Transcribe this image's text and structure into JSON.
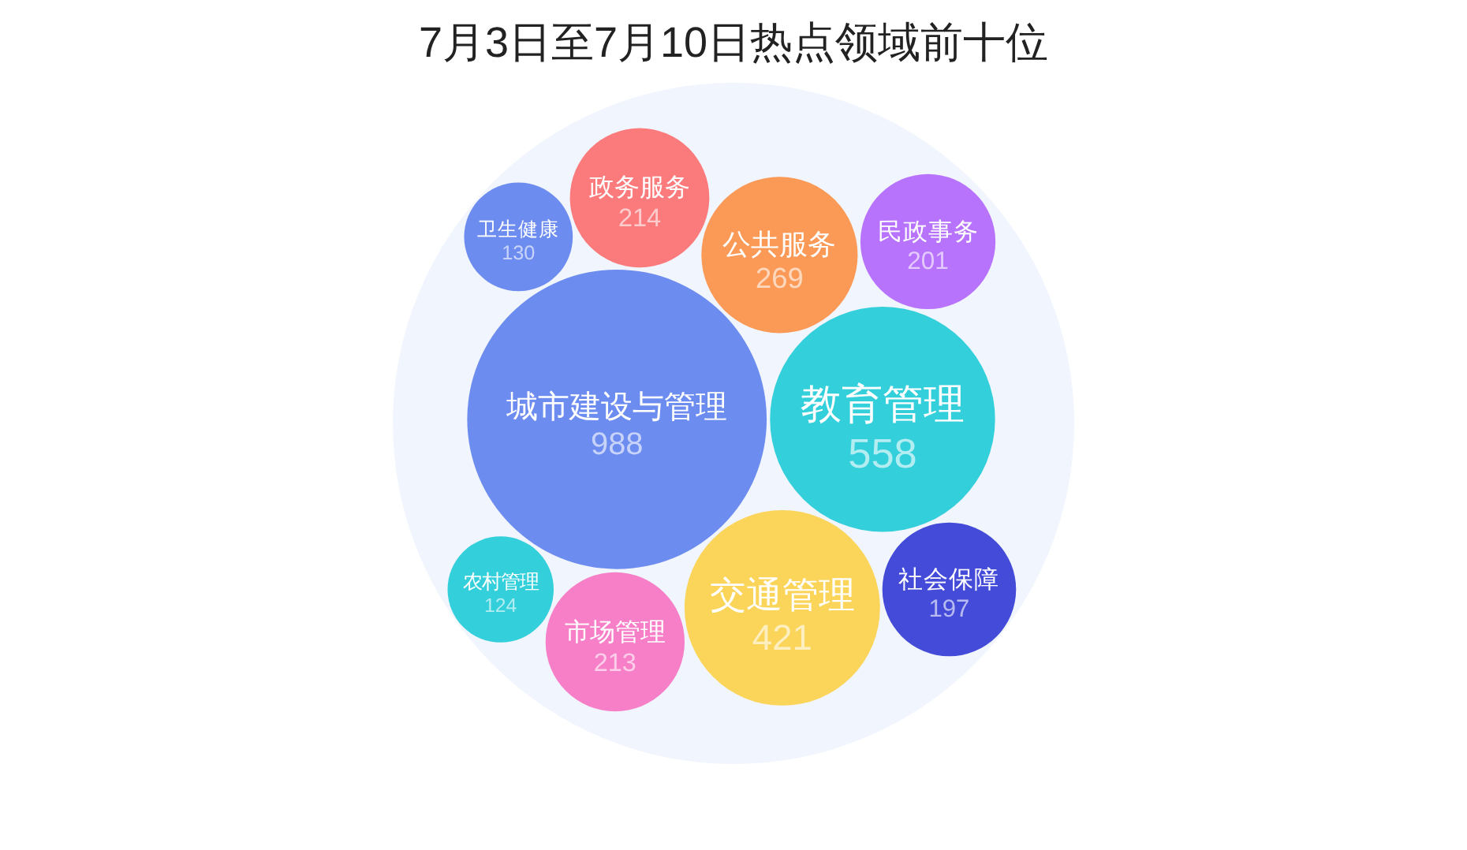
{
  "chart_data": {
    "type": "other",
    "title": "7月3日至7月10日热点领域前十位",
    "categories": [
      "城市建设与管理",
      "教育管理",
      "交通管理",
      "公共服务",
      "政务服务",
      "市场管理",
      "民政事务",
      "社会保障",
      "卫生健康",
      "农村管理"
    ],
    "values": [
      988,
      558,
      421,
      269,
      214,
      213,
      201,
      197,
      130,
      124
    ],
    "colors": [
      "#6d8cf0",
      "#33cfdb",
      "#fbd45a",
      "#fb9a56",
      "#fb7a7c",
      "#f67fc8",
      "#b773fb",
      "#434bd8",
      "#6d8cf0",
      "#33cfdb"
    ],
    "data_labels": true
  }
}
